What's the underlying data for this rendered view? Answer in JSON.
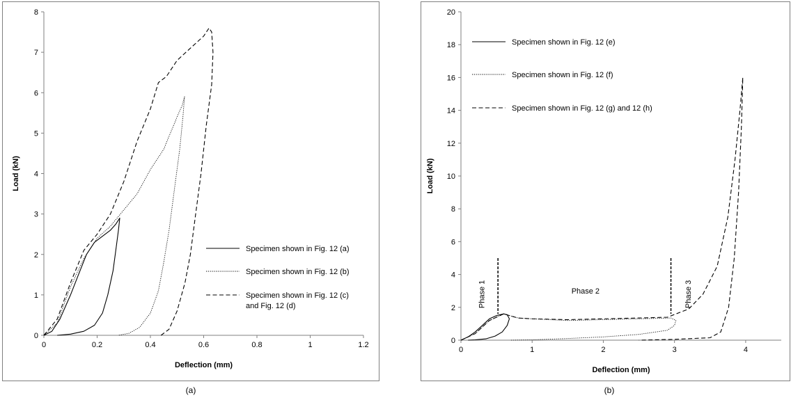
{
  "chart_data": [
    {
      "type": "line",
      "panel": "a",
      "caption": "(a)",
      "xlabel": "Deflection (mm)",
      "ylabel": "Load (kN)",
      "xlim": [
        0,
        1.2
      ],
      "ylim": [
        0,
        8
      ],
      "xticks": [
        "0",
        "0.2",
        "0.4",
        "0.6",
        "0.8",
        "1",
        "1.2"
      ],
      "yticks": [
        "0",
        "1",
        "2",
        "3",
        "4",
        "5",
        "6",
        "7",
        "8"
      ],
      "grid": false,
      "legend": "center-right",
      "series": [
        {
          "name": "Specimen shown in Fig. 12 (a)",
          "style": "solid",
          "points": [
            [
              0,
              0
            ],
            [
              0.03,
              0.1
            ],
            [
              0.06,
              0.4
            ],
            [
              0.1,
              1.0
            ],
            [
              0.13,
              1.5
            ],
            [
              0.16,
              2.0
            ],
            [
              0.19,
              2.3
            ],
            [
              0.22,
              2.45
            ],
            [
              0.25,
              2.6
            ],
            [
              0.27,
              2.75
            ],
            [
              0.285,
              2.9
            ],
            [
              0.28,
              2.6
            ],
            [
              0.27,
              2.1
            ],
            [
              0.26,
              1.6
            ],
            [
              0.24,
              1.0
            ],
            [
              0.22,
              0.55
            ],
            [
              0.19,
              0.25
            ],
            [
              0.15,
              0.1
            ],
            [
              0.1,
              0.03
            ],
            [
              0.05,
              0.0
            ]
          ]
        },
        {
          "name": "Specimen shown in Fig. 12 (b)",
          "style": "dotted",
          "points": [
            [
              0,
              0
            ],
            [
              0.05,
              0.3
            ],
            [
              0.1,
              1.2
            ],
            [
              0.15,
              1.9
            ],
            [
              0.2,
              2.4
            ],
            [
              0.25,
              2.7
            ],
            [
              0.3,
              3.1
            ],
            [
              0.35,
              3.5
            ],
            [
              0.4,
              4.1
            ],
            [
              0.45,
              4.6
            ],
            [
              0.5,
              5.4
            ],
            [
              0.52,
              5.7
            ],
            [
              0.528,
              5.9
            ],
            [
              0.522,
              5.4
            ],
            [
              0.51,
              4.6
            ],
            [
              0.49,
              3.6
            ],
            [
              0.47,
              2.6
            ],
            [
              0.45,
              1.8
            ],
            [
              0.43,
              1.1
            ],
            [
              0.4,
              0.55
            ],
            [
              0.36,
              0.2
            ],
            [
              0.32,
              0.05
            ],
            [
              0.28,
              0.0
            ]
          ]
        },
        {
          "name": "Specimen shown in Fig. 12 (c) and Fig. 12 (d)",
          "style": "dashed",
          "points": [
            [
              0,
              0
            ],
            [
              0.05,
              0.4
            ],
            [
              0.1,
              1.3
            ],
            [
              0.15,
              2.1
            ],
            [
              0.2,
              2.5
            ],
            [
              0.25,
              3.0
            ],
            [
              0.3,
              3.8
            ],
            [
              0.35,
              4.8
            ],
            [
              0.4,
              5.6
            ],
            [
              0.43,
              6.25
            ],
            [
              0.46,
              6.4
            ],
            [
              0.5,
              6.8
            ],
            [
              0.55,
              7.1
            ],
            [
              0.6,
              7.4
            ],
            [
              0.62,
              7.6
            ],
            [
              0.63,
              7.5
            ],
            [
              0.635,
              7.0
            ],
            [
              0.63,
              6.2
            ],
            [
              0.61,
              5.2
            ],
            [
              0.59,
              4.0
            ],
            [
              0.57,
              3.0
            ],
            [
              0.55,
              2.0
            ],
            [
              0.53,
              1.3
            ],
            [
              0.5,
              0.6
            ],
            [
              0.47,
              0.15
            ],
            [
              0.44,
              0.0
            ]
          ]
        }
      ]
    },
    {
      "type": "line",
      "panel": "b",
      "caption": "(b)",
      "xlabel": "Deflection (mm)",
      "ylabel": "Load (kN)",
      "xlim": [
        0,
        4.5
      ],
      "ylim": [
        0,
        20
      ],
      "xticks": [
        "0",
        "1",
        "2",
        "3",
        "4"
      ],
      "yticks": [
        "0",
        "2",
        "4",
        "6",
        "8",
        "10",
        "12",
        "14",
        "16",
        "18",
        "20"
      ],
      "grid": false,
      "legend": "top-left",
      "annotations": [
        "Phase 1",
        "Phase 2",
        "Phase 3"
      ],
      "phase_dividers_x": [
        0.52,
        2.95
      ],
      "series": [
        {
          "name": "Specimen shown in Fig. 12 (e)",
          "style": "solid",
          "points": [
            [
              0,
              0
            ],
            [
              0.1,
              0.2
            ],
            [
              0.2,
              0.5
            ],
            [
              0.3,
              0.9
            ],
            [
              0.4,
              1.3
            ],
            [
              0.5,
              1.5
            ],
            [
              0.6,
              1.6
            ],
            [
              0.65,
              1.55
            ],
            [
              0.68,
              1.3
            ],
            [
              0.65,
              0.9
            ],
            [
              0.58,
              0.5
            ],
            [
              0.48,
              0.25
            ],
            [
              0.35,
              0.08
            ],
            [
              0.2,
              0.02
            ],
            [
              0.1,
              0.0
            ]
          ]
        },
        {
          "name": "Specimen shown in Fig. 12 (f)",
          "style": "dotted",
          "points": [
            [
              0,
              0
            ],
            [
              0.2,
              0.4
            ],
            [
              0.4,
              1.2
            ],
            [
              0.6,
              1.6
            ],
            [
              0.8,
              1.35
            ],
            [
              1.0,
              1.3
            ],
            [
              1.5,
              1.2
            ],
            [
              2.0,
              1.25
            ],
            [
              2.5,
              1.3
            ],
            [
              2.95,
              1.35
            ],
            [
              3.02,
              1.2
            ],
            [
              3.0,
              0.9
            ],
            [
              2.9,
              0.6
            ],
            [
              2.5,
              0.35
            ],
            [
              2.0,
              0.2
            ],
            [
              1.5,
              0.1
            ],
            [
              1.0,
              0.02
            ],
            [
              0.7,
              0.0
            ]
          ]
        },
        {
          "name": "Specimen shown in Fig. 12 (g) and 12 (h)",
          "style": "dashed",
          "points": [
            [
              0,
              0
            ],
            [
              0.2,
              0.4
            ],
            [
              0.4,
              1.2
            ],
            [
              0.6,
              1.6
            ],
            [
              0.8,
              1.35
            ],
            [
              1.0,
              1.3
            ],
            [
              1.5,
              1.25
            ],
            [
              2.0,
              1.3
            ],
            [
              2.5,
              1.35
            ],
            [
              2.9,
              1.4
            ],
            [
              3.2,
              1.9
            ],
            [
              3.4,
              2.8
            ],
            [
              3.6,
              4.5
            ],
            [
              3.75,
              7.5
            ],
            [
              3.85,
              11.0
            ],
            [
              3.92,
              14.0
            ],
            [
              3.96,
              16.0
            ],
            [
              3.94,
              13.0
            ],
            [
              3.9,
              9.0
            ],
            [
              3.84,
              5.0
            ],
            [
              3.76,
              2.0
            ],
            [
              3.65,
              0.5
            ],
            [
              3.5,
              0.15
            ],
            [
              3.0,
              0.05
            ],
            [
              2.5,
              0.0
            ]
          ]
        }
      ]
    }
  ]
}
